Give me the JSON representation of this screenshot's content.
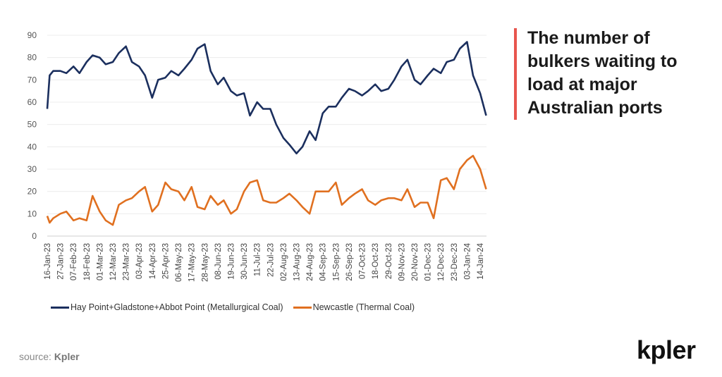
{
  "title": "The number of bulkers waiting to load at major Australian ports",
  "source_label": "source:",
  "source_name": "Kpler",
  "logo_text": "kpler",
  "chart_data": {
    "type": "line",
    "title": "",
    "xlabel": "",
    "ylabel": "",
    "ylim": [
      0,
      90
    ],
    "yticks": [
      0,
      10,
      20,
      30,
      40,
      50,
      60,
      70,
      80,
      90
    ],
    "xlim": [
      "2023-01-16",
      "2024-01-19"
    ],
    "grid": "horizontal",
    "legend_position": "bottom",
    "xtick_dates": [
      "2023-01-16",
      "2023-01-27",
      "2023-02-07",
      "2023-02-18",
      "2023-03-01",
      "2023-03-12",
      "2023-03-23",
      "2023-04-03",
      "2023-04-14",
      "2023-04-25",
      "2023-05-06",
      "2023-05-17",
      "2023-05-28",
      "2023-06-08",
      "2023-06-19",
      "2023-06-30",
      "2023-07-11",
      "2023-07-22",
      "2023-08-02",
      "2023-08-13",
      "2023-08-24",
      "2023-09-04",
      "2023-09-15",
      "2023-09-26",
      "2023-10-07",
      "2023-10-18",
      "2023-10-29",
      "2023-11-09",
      "2023-11-20",
      "2023-12-01",
      "2023-12-12",
      "2023-12-23",
      "2024-01-03",
      "2024-01-14"
    ],
    "xtick_labels": [
      "16-Jan-23",
      "27-Jan-23",
      "07-Feb-23",
      "18-Feb-23",
      "01-Mar-23",
      "12-Mar-23",
      "23-Mar-23",
      "03-Apr-23",
      "14-Apr-23",
      "25-Apr-23",
      "06-May-23",
      "17-May-23",
      "28-May-23",
      "08-Jun-23",
      "19-Jun-23",
      "30-Jun-23",
      "11-Jul-23",
      "22-Jul-23",
      "02-Aug-23",
      "13-Aug-23",
      "24-Aug-23",
      "04-Sep-23",
      "15-Sep-23",
      "26-Sep-23",
      "07-Oct-23",
      "18-Oct-23",
      "29-Oct-23",
      "09-Nov-23",
      "20-Nov-23",
      "01-Dec-23",
      "12-Dec-23",
      "23-Dec-23",
      "03-Jan-24",
      "14-Jan-24"
    ],
    "x": [
      "2023-01-16",
      "2023-01-18",
      "2023-01-21",
      "2023-01-27",
      "2023-02-01",
      "2023-02-07",
      "2023-02-12",
      "2023-02-18",
      "2023-02-23",
      "2023-03-01",
      "2023-03-06",
      "2023-03-12",
      "2023-03-17",
      "2023-03-23",
      "2023-03-28",
      "2023-04-03",
      "2023-04-08",
      "2023-04-14",
      "2023-04-19",
      "2023-04-25",
      "2023-04-30",
      "2023-05-06",
      "2023-05-11",
      "2023-05-17",
      "2023-05-22",
      "2023-05-28",
      "2023-06-02",
      "2023-06-08",
      "2023-06-13",
      "2023-06-19",
      "2023-06-24",
      "2023-06-30",
      "2023-07-05",
      "2023-07-11",
      "2023-07-16",
      "2023-07-22",
      "2023-07-27",
      "2023-08-02",
      "2023-08-07",
      "2023-08-13",
      "2023-08-18",
      "2023-08-24",
      "2023-08-29",
      "2023-09-04",
      "2023-09-09",
      "2023-09-15",
      "2023-09-20",
      "2023-09-26",
      "2023-10-01",
      "2023-10-07",
      "2023-10-12",
      "2023-10-18",
      "2023-10-23",
      "2023-10-29",
      "2023-11-03",
      "2023-11-09",
      "2023-11-14",
      "2023-11-20",
      "2023-11-25",
      "2023-12-01",
      "2023-12-06",
      "2023-12-12",
      "2023-12-17",
      "2023-12-23",
      "2023-12-28",
      "2024-01-03",
      "2024-01-08",
      "2024-01-14",
      "2024-01-19"
    ],
    "series": [
      {
        "name": "Hay Point+Gladstone+Abbot Point (Metallurgical Coal)",
        "color": "#1b2f5e",
        "values": [
          57,
          72,
          74,
          74,
          73,
          76,
          73,
          78,
          81,
          80,
          77,
          78,
          82,
          85,
          78,
          76,
          72,
          62,
          70,
          71,
          74,
          72,
          75,
          79,
          84,
          86,
          74,
          68,
          71,
          65,
          63,
          64,
          54,
          60,
          57,
          57,
          50,
          44,
          41,
          37,
          40,
          47,
          43,
          55,
          58,
          58,
          62,
          66,
          65,
          63,
          65,
          68,
          65,
          66,
          70,
          76,
          79,
          70,
          68,
          72,
          75,
          73,
          78,
          79,
          84,
          87,
          72,
          64,
          54
        ]
      },
      {
        "name": "Newcastle (Thermal Coal)",
        "color": "#e07020",
        "values": [
          9,
          6,
          8,
          10,
          11,
          7,
          8,
          7,
          18,
          11,
          7,
          5,
          14,
          16,
          17,
          20,
          22,
          11,
          14,
          24,
          21,
          20,
          16,
          22,
          13,
          12,
          18,
          14,
          16,
          10,
          12,
          20,
          24,
          25,
          16,
          15,
          15,
          17,
          19,
          16,
          13,
          10,
          20,
          20,
          20,
          24,
          14,
          17,
          19,
          21,
          16,
          14,
          16,
          17,
          17,
          16,
          21,
          13,
          15,
          15,
          8,
          25,
          26,
          21,
          30,
          34,
          36,
          30,
          21
        ]
      }
    ]
  }
}
